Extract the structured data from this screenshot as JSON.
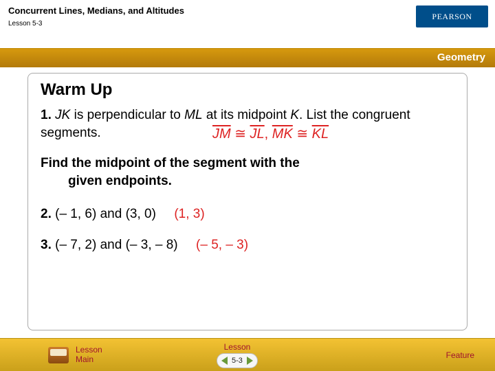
{
  "header": {
    "title": "Concurrent Lines, Medians, and Altitudes",
    "lesson": "Lesson 5-3",
    "logo_text": "PEARSON",
    "logo_bg": "#004e8a",
    "subject": "Geometry",
    "subject_bar_color": "#c9900d"
  },
  "content": {
    "heading": "Warm Up",
    "q1": {
      "num": "1.",
      "text_a": " JK",
      "text_b": " is perpendicular to ",
      "text_c": "ML",
      "text_d": " at its midpoint ",
      "text_e": "K",
      "text_f": ". List the congruent segments.",
      "ans_jm": "JM",
      "ans_jl": "JL",
      "ans_mk": "MK",
      "ans_kl": "KL",
      "cong": " ≅ ",
      "comma": ", "
    },
    "prompt_a": "Find the midpoint of the segment with the",
    "prompt_b": "given endpoints.",
    "q2": {
      "num": "2.",
      "text": " (– 1, 6) and (3, 0)",
      "ans": "(1, 3)"
    },
    "q3": {
      "num": "3.",
      "text": " (– 7, 2) and (– 3, – 8)",
      "ans": "(– 5, – 3)"
    }
  },
  "footer": {
    "left_a": "Lesson",
    "left_b": "Main",
    "center_label": "Lesson",
    "center_num": "5-3",
    "right": "Feature",
    "bar_color": "#e7b427"
  }
}
